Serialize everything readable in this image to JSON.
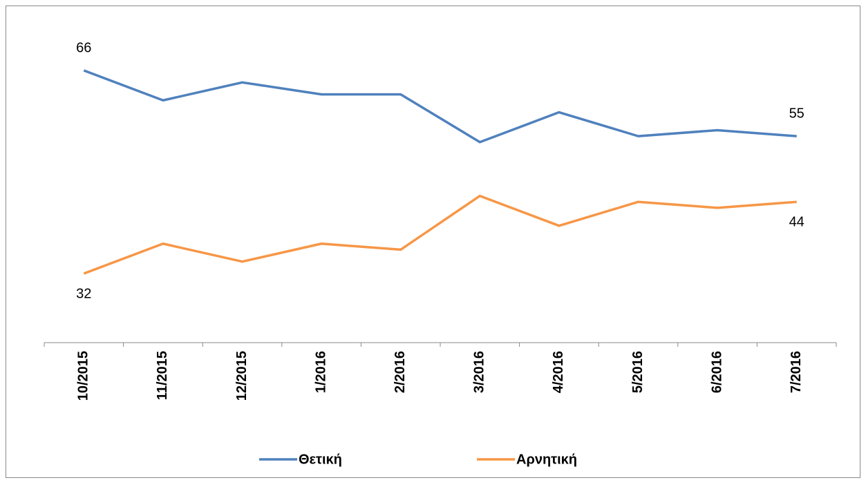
{
  "chart_data": {
    "type": "line",
    "categories": [
      "10/2015",
      "11/2015",
      "12/2015",
      "1/2016",
      "2/2016",
      "3/2016",
      "4/2016",
      "5/2016",
      "6/2016",
      "7/2016"
    ],
    "series": [
      {
        "name": "Θετική",
        "color": "#4f81bd",
        "values": [
          66,
          61,
          64,
          62,
          62,
          54,
          59,
          55,
          56,
          55
        ]
      },
      {
        "name": "Αρνητική",
        "color": "#f79646",
        "values": [
          32,
          37,
          34,
          37,
          36,
          45,
          40,
          44,
          43,
          44
        ]
      }
    ],
    "legend": "bottom"
  }
}
